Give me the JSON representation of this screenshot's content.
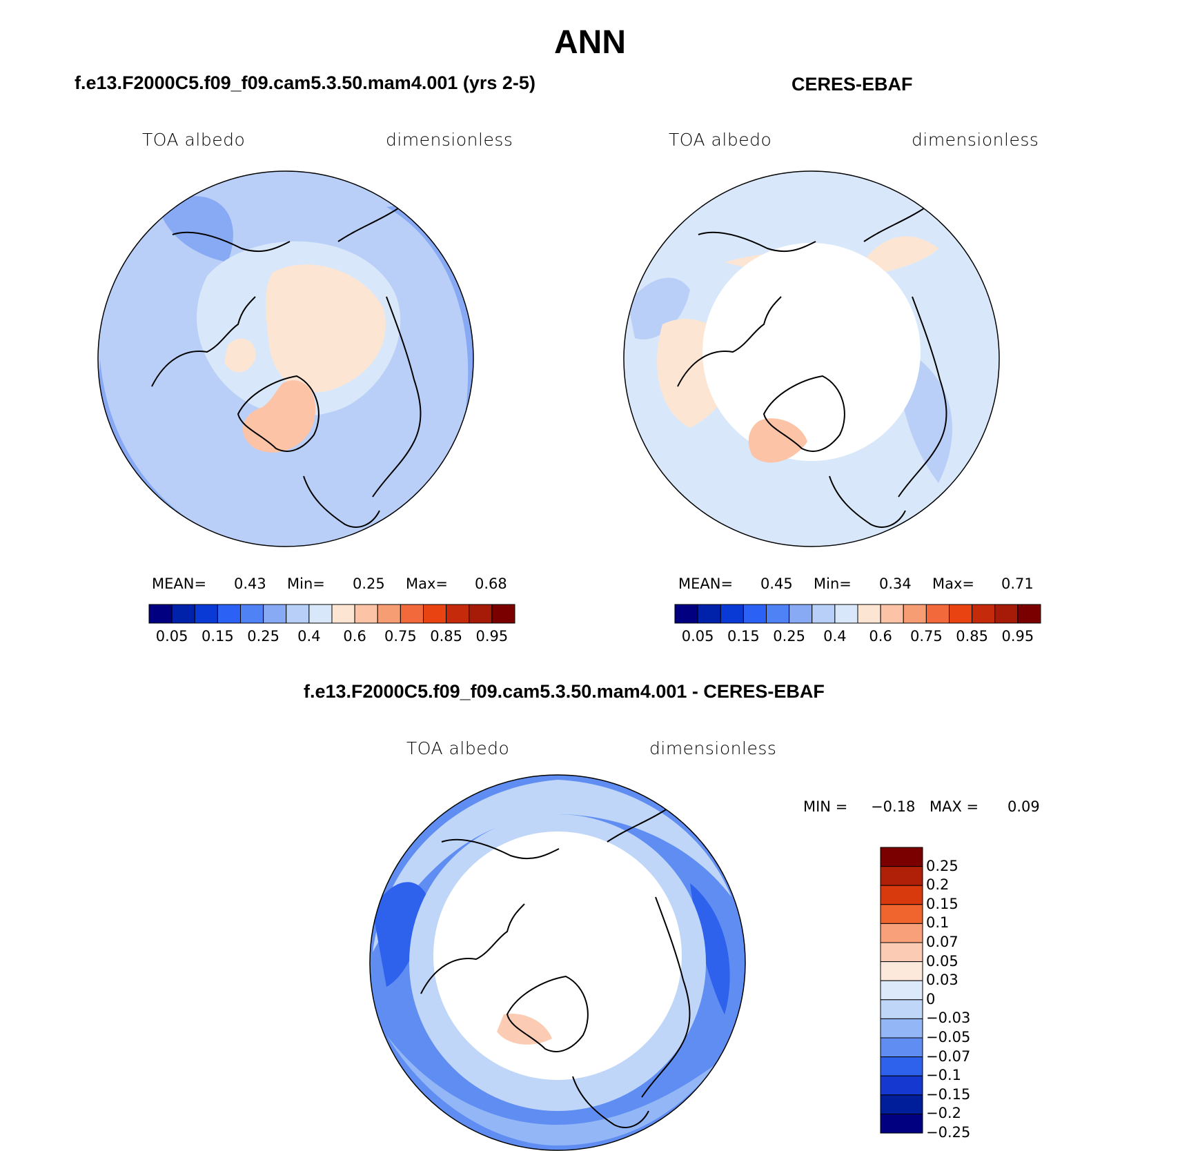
{
  "title": "ANN",
  "color_scale": {
    "abs_colors": [
      "#000080",
      "#0022aa",
      "#0a3ad6",
      "#2b62f5",
      "#4f82f5",
      "#88aaf5",
      "#b8cff8",
      "#d8e8fa",
      "#fde5d3",
      "#fcc3a6",
      "#f79d73",
      "#f26a3b",
      "#e94312",
      "#c52a0a",
      "#a61b08",
      "#7a0000"
    ],
    "diff_colors": [
      "#7a0000",
      "#b01f08",
      "#d83a0e",
      "#f0642e",
      "#f8a07a",
      "#fccbb4",
      "#fde9dc",
      "#dbe9fa",
      "#bfd6f9",
      "#93b6f6",
      "#5f8df2",
      "#2f62ec",
      "#1438d0",
      "#001e9a",
      "#000080"
    ]
  },
  "panels": [
    {
      "title": "f.e13.F2000C5.f09_f09.cam5.3.50.mam4.001 (yrs 2-5)",
      "left_label": "TOA albedo",
      "right_label": "dimensionless",
      "stats": {
        "mean_label": "MEAN=",
        "mean": "0.43",
        "min_label": "Min=",
        "min": "0.25",
        "max_label": "Max=",
        "max": "0.68"
      },
      "tick_labels": [
        "0.05",
        "0.15",
        "0.25",
        "0.4",
        "0.6",
        "0.75",
        "0.85",
        "0.95"
      ]
    },
    {
      "title": "CERES-EBAF",
      "left_label": "TOA albedo",
      "right_label": "dimensionless",
      "stats": {
        "mean_label": "MEAN=",
        "mean": "0.45",
        "min_label": "Min=",
        "min": "0.34",
        "max_label": "Max=",
        "max": "0.71"
      },
      "tick_labels": [
        "0.05",
        "0.15",
        "0.25",
        "0.4",
        "0.6",
        "0.75",
        "0.85",
        "0.95"
      ]
    },
    {
      "title": "f.e13.F2000C5.f09_f09.cam5.3.50.mam4.001 - CERES-EBAF",
      "left_label": "TOA albedo",
      "right_label": "dimensionless",
      "stats": {
        "min_label": "MIN =",
        "min": "−0.18",
        "max_label": "MAX =",
        "max": "0.09"
      },
      "tick_labels": [
        "0.25",
        "0.2",
        "0.15",
        "0.1",
        "0.07",
        "0.05",
        "0.03",
        "0",
        "−0.03",
        "−0.05",
        "−0.07",
        "−0.1",
        "−0.15",
        "−0.2",
        "−0.25"
      ]
    }
  ],
  "chart_data": [
    {
      "type": "heatmap",
      "title": "f.e13.F2000C5.f09_f09.cam5.3.50.mam4.001 (yrs 2-5)",
      "variable": "TOA albedo",
      "units": "dimensionless",
      "projection": "north polar stereographic",
      "mean": 0.43,
      "min": 0.25,
      "max": 0.68,
      "contour_levels": [
        0.05,
        0.1,
        0.15,
        0.2,
        0.25,
        0.3,
        0.4,
        0.5,
        0.6,
        0.7,
        0.75,
        0.8,
        0.85,
        0.9,
        0.95
      ]
    },
    {
      "type": "heatmap",
      "title": "CERES-EBAF",
      "variable": "TOA albedo",
      "units": "dimensionless",
      "projection": "north polar stereographic",
      "mean": 0.45,
      "min": 0.34,
      "max": 0.71,
      "contour_levels": [
        0.05,
        0.1,
        0.15,
        0.2,
        0.25,
        0.3,
        0.4,
        0.5,
        0.6,
        0.7,
        0.75,
        0.8,
        0.85,
        0.9,
        0.95
      ]
    },
    {
      "type": "heatmap",
      "title": "f.e13.F2000C5.f09_f09.cam5.3.50.mam4.001 - CERES-EBAF",
      "variable": "TOA albedo",
      "units": "dimensionless",
      "projection": "north polar stereographic",
      "min": -0.18,
      "max": 0.09,
      "contour_levels": [
        0.25,
        0.2,
        0.15,
        0.1,
        0.07,
        0.05,
        0.03,
        0,
        -0.03,
        -0.05,
        -0.07,
        -0.1,
        -0.15,
        -0.2,
        -0.25
      ]
    }
  ]
}
